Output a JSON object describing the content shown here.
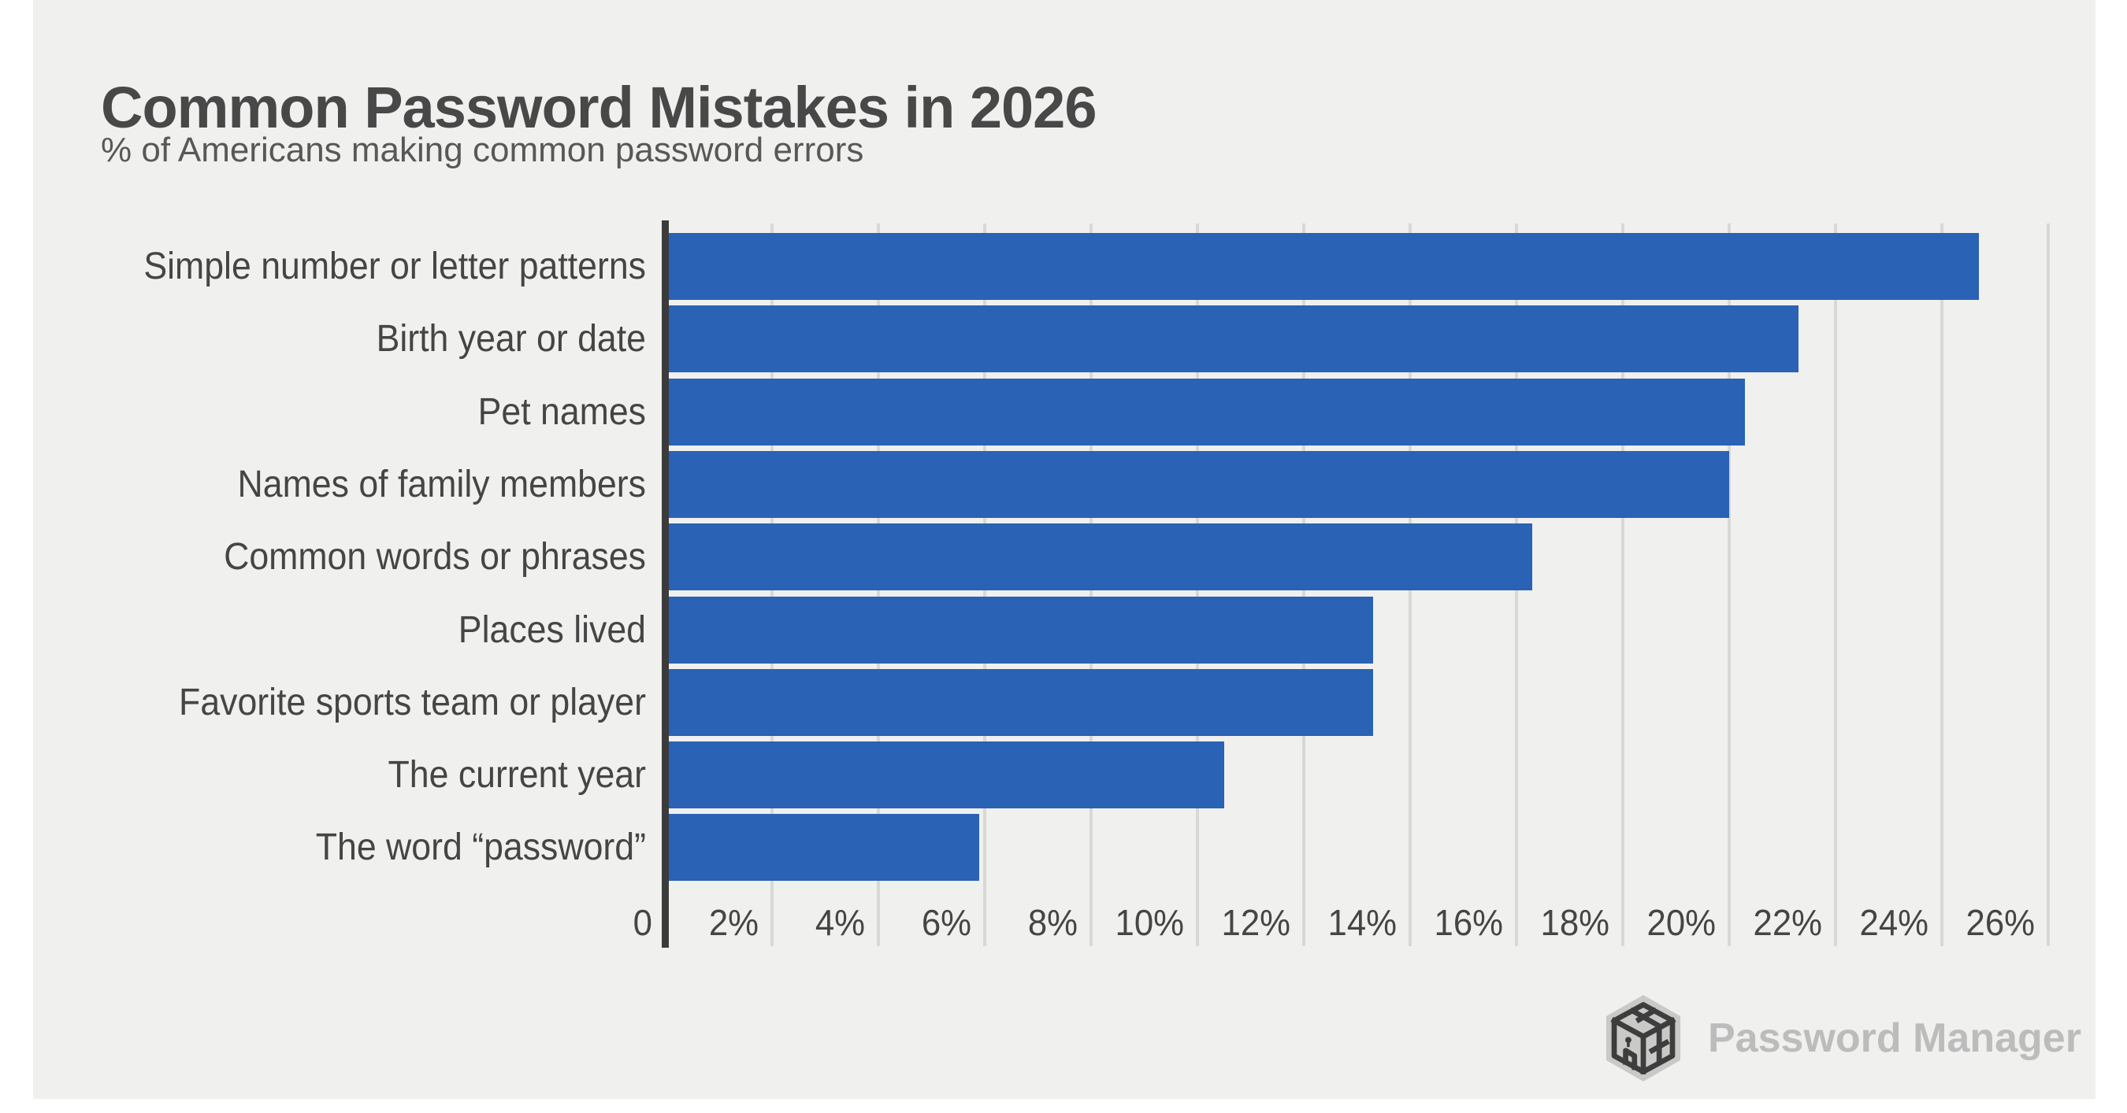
{
  "title": "Common Password Mistakes in 2026",
  "subtitle": "% of Americans making common password errors",
  "branding": {
    "logo_text": "Password Manager",
    "logo_icon": "cube-in-hexagon-logo-icon"
  },
  "colors": {
    "page_bg": "#ffffff",
    "canvas_bg": "#f0f0ee",
    "bar": "#2a62b5",
    "title_text": "#484848",
    "subtitle_text": "#585858",
    "label_text": "#454545",
    "axis_line": "#3b3b3b",
    "gridline": "#d8d8d7",
    "logo_text": "#bcbcbc",
    "logo_icon": "#3d3d3d"
  },
  "chart_data": {
    "type": "bar",
    "orientation": "horizontal",
    "title": "Common Password Mistakes in 2026",
    "subtitle": "% of Americans making common password errors",
    "categories": [
      "Simple number or letter patterns",
      "Birth year or date",
      "Pet names",
      "Names of family members",
      "Common words or phrases",
      "Places lived",
      "Favorite sports team or player",
      "The current year",
      "The word “password”"
    ],
    "values": [
      24.7,
      21.3,
      20.3,
      20.0,
      16.3,
      13.3,
      13.3,
      10.5,
      5.9
    ],
    "unit": "%",
    "xlabel": "",
    "ylabel": "",
    "xlim": [
      0,
      26
    ],
    "x_tick_values": [
      0,
      2,
      4,
      6,
      8,
      10,
      12,
      14,
      16,
      18,
      20,
      22,
      24,
      26
    ],
    "x_tick_labels": [
      "0",
      "2%",
      "4%",
      "6%",
      "8%",
      "10%",
      "12%",
      "14%",
      "16%",
      "18%",
      "20%",
      "22%",
      "24%",
      "26%"
    ],
    "grid": "vertical gridlines every 2%",
    "legend": "none",
    "bar_color": "#2a62b5"
  }
}
